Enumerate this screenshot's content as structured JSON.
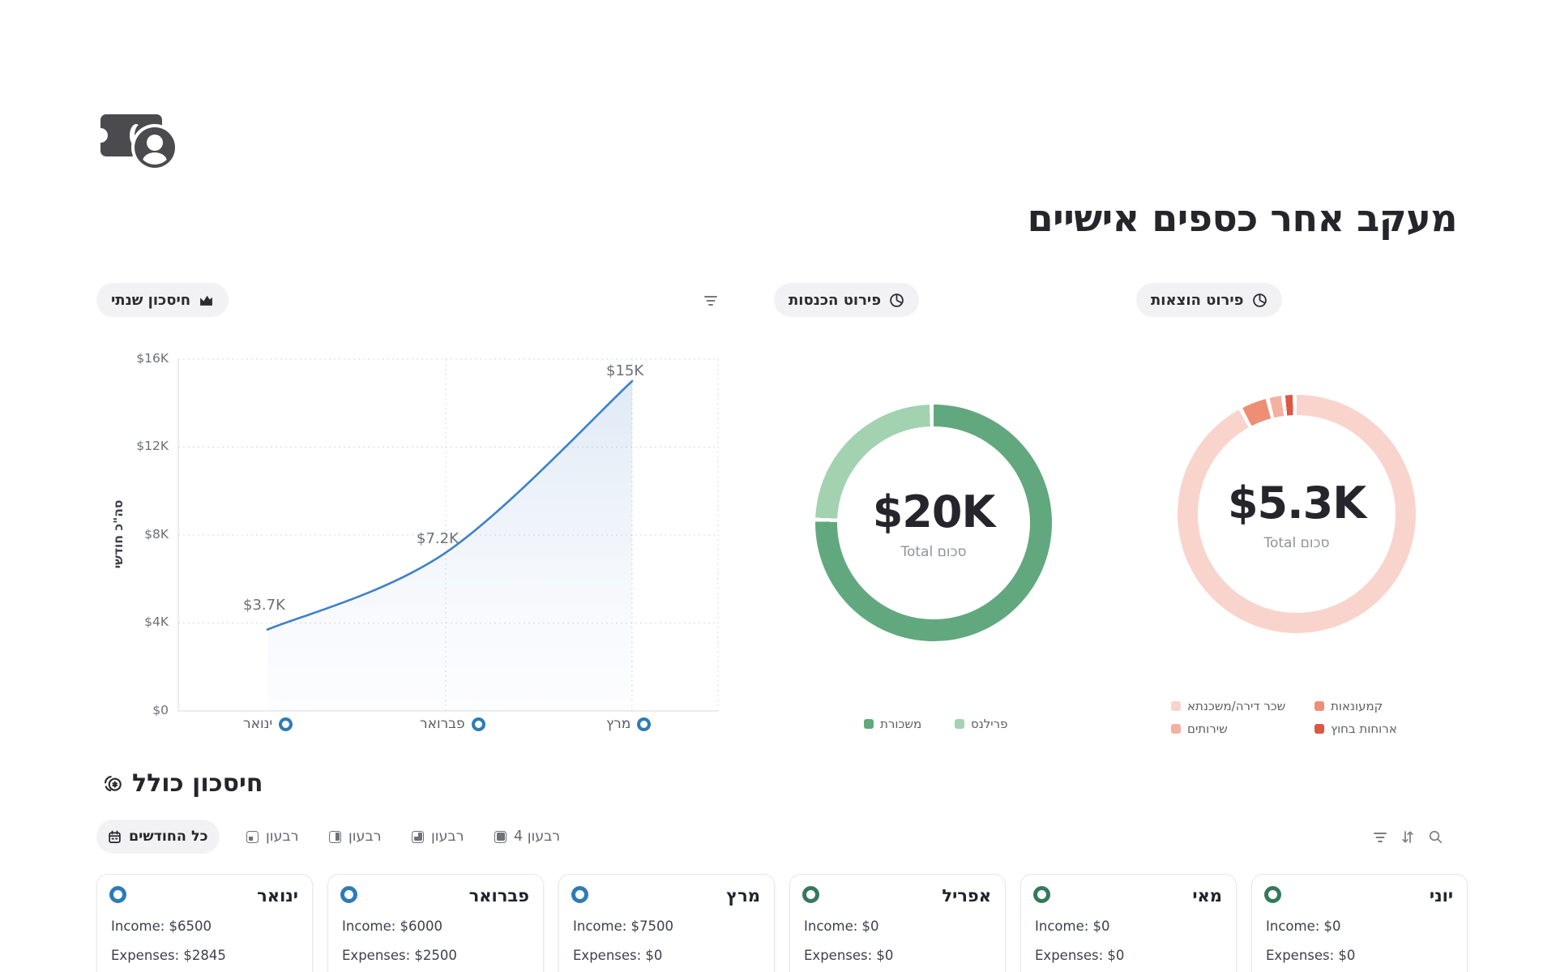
{
  "header": {
    "title": "מעקב אחר כספים אישיים",
    "logo": "banknote-and-coin-logo"
  },
  "colors": {
    "blue": "#2d7cb5",
    "green": "#347a5b",
    "line_blue": "#3e82c6"
  },
  "annual_card": {
    "badge": "חיסכון שנתי"
  },
  "income_card": {
    "badge": "פירוט הכנסות"
  },
  "expense_card": {
    "badge": "פירוט הוצאות"
  },
  "chart_data": [
    {
      "type": "area",
      "title": "חיסכון שנתי",
      "x": [
        "ינואר",
        "פברואר",
        "מרץ"
      ],
      "values": [
        3700,
        7200,
        15000
      ],
      "point_labels": [
        "$3.7K",
        "$7.2K",
        "$15K"
      ],
      "ylabel": "סה\"כ חודשי",
      "yticks": [
        "$0",
        "$4K",
        "$8K",
        "$12K",
        "$16K"
      ],
      "ylim": [
        0,
        16000
      ],
      "grid": "dotted",
      "line_color": "#3e82c6"
    },
    {
      "type": "donut",
      "title": "פירוט הכנסות",
      "center_value": "$20K",
      "center_label": "סכום Total",
      "slices": [
        {
          "label": "משכורת",
          "pct": 76,
          "color": "#62a87e"
        },
        {
          "label": "פרילנס",
          "pct": 24,
          "color": "#a3d2b1"
        }
      ],
      "legend_position": "bottom"
    },
    {
      "type": "donut",
      "title": "פירוט הוצאות",
      "center_value": "$5.3K",
      "center_label": "סכום Total",
      "slices": [
        {
          "label": "שכר דירה/משכנתא",
          "pct": 94,
          "color": "#f9d4cc"
        },
        {
          "label": "קמעונאות",
          "pct": 3.4,
          "color": "#ee8f75"
        },
        {
          "label": "שירותים",
          "pct": 1.6,
          "color": "#f4b0a0"
        },
        {
          "label": "ארוחות בחוץ",
          "pct": 1.0,
          "color": "#df5742"
        }
      ],
      "legend_position": "bottom"
    }
  ],
  "savings_section": {
    "title": "חיסכון כולל",
    "tabs": [
      {
        "label": "כל החודשים",
        "active": true
      },
      {
        "label": "רבעון",
        "active": false
      },
      {
        "label": "רבעון",
        "active": false
      },
      {
        "label": "רבעון",
        "active": false
      },
      {
        "label": "רבעון 4",
        "active": false
      }
    ],
    "months": [
      {
        "name": "ינואר",
        "income": "Income: $6500",
        "expenses": "Expenses: $2845",
        "dot_color": "blue"
      },
      {
        "name": "פברואר",
        "income": "Income: $6000",
        "expenses": "Expenses: $2500",
        "dot_color": "blue"
      },
      {
        "name": "מרץ",
        "income": "Income: $7500",
        "expenses": "Expenses: $0",
        "dot_color": "blue"
      },
      {
        "name": "אפריל",
        "income": "Income: $0",
        "expenses": "Expenses: $0",
        "dot_color": "green"
      },
      {
        "name": "מאי",
        "income": "Income: $0",
        "expenses": "Expenses: $0",
        "dot_color": "green"
      },
      {
        "name": "יוני",
        "income": "Income: $0",
        "expenses": "Expenses: $0",
        "dot_color": "green"
      }
    ]
  }
}
